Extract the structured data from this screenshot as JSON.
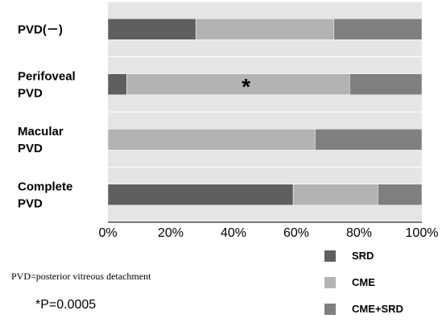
{
  "chart_data": {
    "type": "bar",
    "orientation": "horizontal",
    "stacked": true,
    "percent": true,
    "categories": [
      [
        "PVD(－)"
      ],
      [
        "Perifoveal",
        "PVD"
      ],
      [
        "Macular",
        "PVD"
      ],
      [
        "Complete",
        "PVD"
      ]
    ],
    "series": [
      {
        "name": "SRD",
        "color": "#5f5f5f",
        "values": [
          28,
          6,
          0,
          59
        ]
      },
      {
        "name": "CME",
        "color": "#b3b3b3",
        "values": [
          44,
          71,
          66,
          27
        ]
      },
      {
        "name": "CME+SRD",
        "color": "#7f7f7f",
        "values": [
          28,
          23,
          34,
          14
        ]
      }
    ],
    "xlim": [
      0,
      100
    ],
    "xticks": [
      "0%",
      "20%",
      "40%",
      "60%",
      "80%",
      "100%"
    ],
    "grid": true,
    "legend_position": "bottom-right",
    "annotations": [
      {
        "category_index": 1,
        "text": "*"
      }
    ],
    "footnote": "PVD=posterior vitreous detachment",
    "pvalue": "*P=0.0005",
    "colors": {
      "plot_background": "#e5e5e5",
      "gridline": "#ffffff",
      "axis": "#000000"
    }
  }
}
